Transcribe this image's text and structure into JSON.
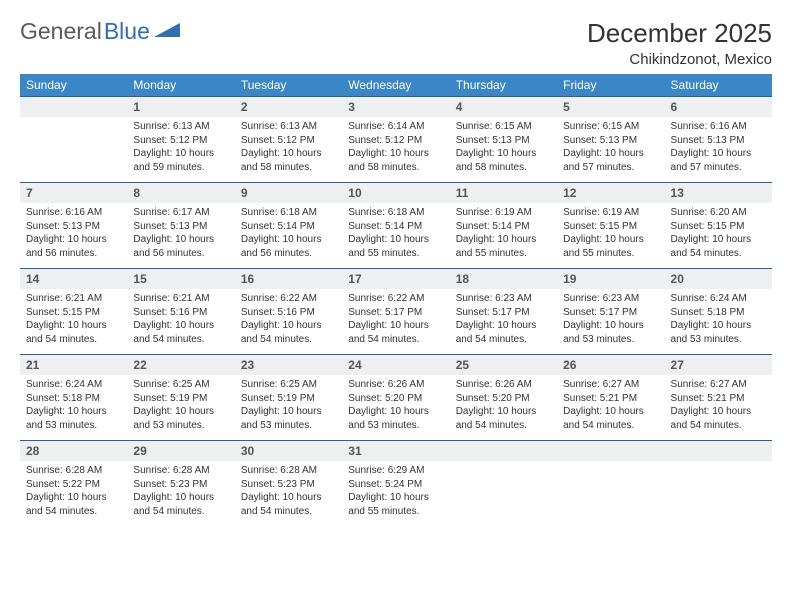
{
  "brand": {
    "name1": "General",
    "name2": "Blue"
  },
  "title": "December 2025",
  "location": "Chikindzonot, Mexico",
  "colors": {
    "header_bg": "#3b86c6",
    "header_text": "#ffffff",
    "daynum_bg": "#edeff1",
    "daynum_text": "#555555",
    "rule": "#2b5f96",
    "body_text": "#333333",
    "logo_gray": "#5a5a5a",
    "logo_blue": "#2f6fb3",
    "background": "#ffffff"
  },
  "fonts": {
    "title_size": 26,
    "location_size": 15,
    "dayhead_size": 12,
    "daynum_size": 12,
    "body_size": 10
  },
  "weekdays": [
    "Sunday",
    "Monday",
    "Tuesday",
    "Wednesday",
    "Thursday",
    "Friday",
    "Saturday"
  ],
  "weeks": [
    [
      {
        "empty": true
      },
      {
        "n": "1",
        "sr": "Sunrise: 6:13 AM",
        "ss": "Sunset: 5:12 PM",
        "dl1": "Daylight: 10 hours",
        "dl2": "and 59 minutes."
      },
      {
        "n": "2",
        "sr": "Sunrise: 6:13 AM",
        "ss": "Sunset: 5:12 PM",
        "dl1": "Daylight: 10 hours",
        "dl2": "and 58 minutes."
      },
      {
        "n": "3",
        "sr": "Sunrise: 6:14 AM",
        "ss": "Sunset: 5:12 PM",
        "dl1": "Daylight: 10 hours",
        "dl2": "and 58 minutes."
      },
      {
        "n": "4",
        "sr": "Sunrise: 6:15 AM",
        "ss": "Sunset: 5:13 PM",
        "dl1": "Daylight: 10 hours",
        "dl2": "and 58 minutes."
      },
      {
        "n": "5",
        "sr": "Sunrise: 6:15 AM",
        "ss": "Sunset: 5:13 PM",
        "dl1": "Daylight: 10 hours",
        "dl2": "and 57 minutes."
      },
      {
        "n": "6",
        "sr": "Sunrise: 6:16 AM",
        "ss": "Sunset: 5:13 PM",
        "dl1": "Daylight: 10 hours",
        "dl2": "and 57 minutes."
      }
    ],
    [
      {
        "n": "7",
        "sr": "Sunrise: 6:16 AM",
        "ss": "Sunset: 5:13 PM",
        "dl1": "Daylight: 10 hours",
        "dl2": "and 56 minutes."
      },
      {
        "n": "8",
        "sr": "Sunrise: 6:17 AM",
        "ss": "Sunset: 5:13 PM",
        "dl1": "Daylight: 10 hours",
        "dl2": "and 56 minutes."
      },
      {
        "n": "9",
        "sr": "Sunrise: 6:18 AM",
        "ss": "Sunset: 5:14 PM",
        "dl1": "Daylight: 10 hours",
        "dl2": "and 56 minutes."
      },
      {
        "n": "10",
        "sr": "Sunrise: 6:18 AM",
        "ss": "Sunset: 5:14 PM",
        "dl1": "Daylight: 10 hours",
        "dl2": "and 55 minutes."
      },
      {
        "n": "11",
        "sr": "Sunrise: 6:19 AM",
        "ss": "Sunset: 5:14 PM",
        "dl1": "Daylight: 10 hours",
        "dl2": "and 55 minutes."
      },
      {
        "n": "12",
        "sr": "Sunrise: 6:19 AM",
        "ss": "Sunset: 5:15 PM",
        "dl1": "Daylight: 10 hours",
        "dl2": "and 55 minutes."
      },
      {
        "n": "13",
        "sr": "Sunrise: 6:20 AM",
        "ss": "Sunset: 5:15 PM",
        "dl1": "Daylight: 10 hours",
        "dl2": "and 54 minutes."
      }
    ],
    [
      {
        "n": "14",
        "sr": "Sunrise: 6:21 AM",
        "ss": "Sunset: 5:15 PM",
        "dl1": "Daylight: 10 hours",
        "dl2": "and 54 minutes."
      },
      {
        "n": "15",
        "sr": "Sunrise: 6:21 AM",
        "ss": "Sunset: 5:16 PM",
        "dl1": "Daylight: 10 hours",
        "dl2": "and 54 minutes."
      },
      {
        "n": "16",
        "sr": "Sunrise: 6:22 AM",
        "ss": "Sunset: 5:16 PM",
        "dl1": "Daylight: 10 hours",
        "dl2": "and 54 minutes."
      },
      {
        "n": "17",
        "sr": "Sunrise: 6:22 AM",
        "ss": "Sunset: 5:17 PM",
        "dl1": "Daylight: 10 hours",
        "dl2": "and 54 minutes."
      },
      {
        "n": "18",
        "sr": "Sunrise: 6:23 AM",
        "ss": "Sunset: 5:17 PM",
        "dl1": "Daylight: 10 hours",
        "dl2": "and 54 minutes."
      },
      {
        "n": "19",
        "sr": "Sunrise: 6:23 AM",
        "ss": "Sunset: 5:17 PM",
        "dl1": "Daylight: 10 hours",
        "dl2": "and 53 minutes."
      },
      {
        "n": "20",
        "sr": "Sunrise: 6:24 AM",
        "ss": "Sunset: 5:18 PM",
        "dl1": "Daylight: 10 hours",
        "dl2": "and 53 minutes."
      }
    ],
    [
      {
        "n": "21",
        "sr": "Sunrise: 6:24 AM",
        "ss": "Sunset: 5:18 PM",
        "dl1": "Daylight: 10 hours",
        "dl2": "and 53 minutes."
      },
      {
        "n": "22",
        "sr": "Sunrise: 6:25 AM",
        "ss": "Sunset: 5:19 PM",
        "dl1": "Daylight: 10 hours",
        "dl2": "and 53 minutes."
      },
      {
        "n": "23",
        "sr": "Sunrise: 6:25 AM",
        "ss": "Sunset: 5:19 PM",
        "dl1": "Daylight: 10 hours",
        "dl2": "and 53 minutes."
      },
      {
        "n": "24",
        "sr": "Sunrise: 6:26 AM",
        "ss": "Sunset: 5:20 PM",
        "dl1": "Daylight: 10 hours",
        "dl2": "and 53 minutes."
      },
      {
        "n": "25",
        "sr": "Sunrise: 6:26 AM",
        "ss": "Sunset: 5:20 PM",
        "dl1": "Daylight: 10 hours",
        "dl2": "and 54 minutes."
      },
      {
        "n": "26",
        "sr": "Sunrise: 6:27 AM",
        "ss": "Sunset: 5:21 PM",
        "dl1": "Daylight: 10 hours",
        "dl2": "and 54 minutes."
      },
      {
        "n": "27",
        "sr": "Sunrise: 6:27 AM",
        "ss": "Sunset: 5:21 PM",
        "dl1": "Daylight: 10 hours",
        "dl2": "and 54 minutes."
      }
    ],
    [
      {
        "n": "28",
        "sr": "Sunrise: 6:28 AM",
        "ss": "Sunset: 5:22 PM",
        "dl1": "Daylight: 10 hours",
        "dl2": "and 54 minutes."
      },
      {
        "n": "29",
        "sr": "Sunrise: 6:28 AM",
        "ss": "Sunset: 5:23 PM",
        "dl1": "Daylight: 10 hours",
        "dl2": "and 54 minutes."
      },
      {
        "n": "30",
        "sr": "Sunrise: 6:28 AM",
        "ss": "Sunset: 5:23 PM",
        "dl1": "Daylight: 10 hours",
        "dl2": "and 54 minutes."
      },
      {
        "n": "31",
        "sr": "Sunrise: 6:29 AM",
        "ss": "Sunset: 5:24 PM",
        "dl1": "Daylight: 10 hours",
        "dl2": "and 55 minutes."
      },
      {
        "empty": true
      },
      {
        "empty": true
      },
      {
        "empty": true
      }
    ]
  ]
}
